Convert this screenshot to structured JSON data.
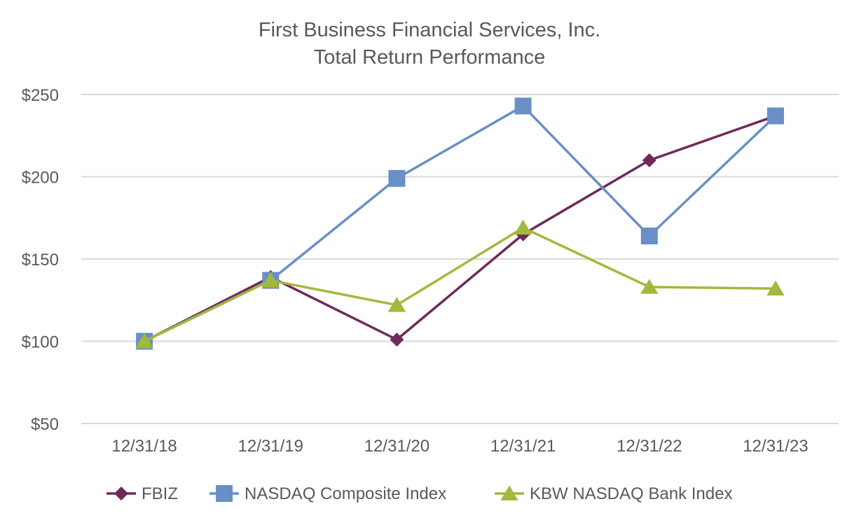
{
  "chart_data": {
    "type": "line",
    "title_lines": [
      "First Business Financial Services, Inc.",
      "Total Return Performance"
    ],
    "categories": [
      "12/31/18",
      "12/31/19",
      "12/31/20",
      "12/31/21",
      "12/31/22",
      "12/31/23"
    ],
    "ylim": [
      50,
      250
    ],
    "yticks": [
      50,
      100,
      150,
      200,
      250
    ],
    "ytick_labels": [
      "$50",
      "$100",
      "$150",
      "$200",
      "$250"
    ],
    "grid": true,
    "legend_position": "bottom",
    "series": [
      {
        "name": "FBIZ",
        "marker": "diamond",
        "color": "#6E2A5A",
        "values": [
          100,
          139,
          101,
          165,
          210,
          237
        ]
      },
      {
        "name": "NASDAQ Composite Index",
        "marker": "square",
        "color": "#6A8FC7",
        "values": [
          100,
          137,
          199,
          243,
          164,
          237
        ]
      },
      {
        "name": "KBW NASDAQ Bank Index",
        "marker": "triangle",
        "color": "#A3B83C",
        "values": [
          100,
          137,
          122,
          169,
          133,
          132
        ]
      }
    ]
  },
  "colors": {
    "grid": "#D9D9D9",
    "text": "#595959",
    "background": "#FFFFFF"
  }
}
